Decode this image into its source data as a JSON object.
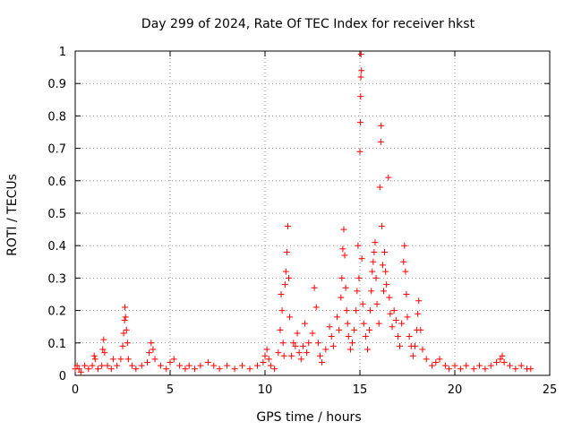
{
  "chart_data": {
    "type": "scatter",
    "title": "Day 299 of 2024, Rate Of TEC Index for receiver hkst",
    "xlabel": "GPS time / hours",
    "ylabel": "ROTI / TECUs",
    "xlim": [
      0,
      25
    ],
    "ylim": [
      0,
      1
    ],
    "x_ticks": [
      0,
      5,
      10,
      15,
      20,
      25
    ],
    "y_ticks": [
      0,
      0.1,
      0.2,
      0.3,
      0.4,
      0.5,
      0.6,
      0.7,
      0.8,
      0.9,
      1
    ],
    "x_tick_labels": [
      "0",
      "5",
      "10",
      "15",
      "20",
      "25"
    ],
    "y_tick_labels": [
      "0",
      "0.1",
      "0.2",
      "0.3",
      "0.4",
      "0.5",
      "0.6",
      "0.7",
      "0.8",
      "0.9",
      "1"
    ],
    "grid": true,
    "marker": "+",
    "series": [
      {
        "name": "ROTI",
        "color": "#ff0000",
        "points": [
          [
            0.0,
            0.02
          ],
          [
            0.1,
            0.03
          ],
          [
            0.2,
            0.02
          ],
          [
            0.3,
            0.01
          ],
          [
            0.5,
            0.03
          ],
          [
            0.7,
            0.02
          ],
          [
            0.9,
            0.03
          ],
          [
            1.0,
            0.06
          ],
          [
            1.05,
            0.05
          ],
          [
            1.2,
            0.02
          ],
          [
            1.4,
            0.03
          ],
          [
            1.45,
            0.08
          ],
          [
            1.5,
            0.11
          ],
          [
            1.55,
            0.07
          ],
          [
            1.7,
            0.03
          ],
          [
            1.9,
            0.02
          ],
          [
            2.0,
            0.05
          ],
          [
            2.2,
            0.03
          ],
          [
            2.4,
            0.05
          ],
          [
            2.5,
            0.09
          ],
          [
            2.55,
            0.13
          ],
          [
            2.6,
            0.17
          ],
          [
            2.62,
            0.21
          ],
          [
            2.65,
            0.18
          ],
          [
            2.7,
            0.14
          ],
          [
            2.75,
            0.1
          ],
          [
            2.8,
            0.05
          ],
          [
            3.0,
            0.03
          ],
          [
            3.2,
            0.02
          ],
          [
            3.5,
            0.03
          ],
          [
            3.8,
            0.04
          ],
          [
            3.9,
            0.07
          ],
          [
            4.0,
            0.1
          ],
          [
            4.1,
            0.08
          ],
          [
            4.2,
            0.05
          ],
          [
            4.5,
            0.03
          ],
          [
            4.8,
            0.02
          ],
          [
            5.0,
            0.04
          ],
          [
            5.2,
            0.05
          ],
          [
            5.5,
            0.03
          ],
          [
            5.8,
            0.02
          ],
          [
            6.0,
            0.03
          ],
          [
            6.3,
            0.02
          ],
          [
            6.6,
            0.03
          ],
          [
            7.0,
            0.04
          ],
          [
            7.3,
            0.03
          ],
          [
            7.6,
            0.02
          ],
          [
            8.0,
            0.03
          ],
          [
            8.4,
            0.02
          ],
          [
            8.8,
            0.03
          ],
          [
            9.2,
            0.02
          ],
          [
            9.6,
            0.03
          ],
          [
            9.9,
            0.04
          ],
          [
            10.0,
            0.06
          ],
          [
            10.1,
            0.08
          ],
          [
            10.2,
            0.05
          ],
          [
            10.3,
            0.03
          ],
          [
            10.5,
            0.02
          ],
          [
            10.7,
            0.07
          ],
          [
            10.8,
            0.14
          ],
          [
            10.85,
            0.25
          ],
          [
            10.9,
            0.2
          ],
          [
            10.95,
            0.1
          ],
          [
            11.0,
            0.06
          ],
          [
            11.05,
            0.28
          ],
          [
            11.1,
            0.32
          ],
          [
            11.15,
            0.38
          ],
          [
            11.2,
            0.46
          ],
          [
            11.25,
            0.3
          ],
          [
            11.3,
            0.18
          ],
          [
            11.4,
            0.06
          ],
          [
            11.5,
            0.1
          ],
          [
            11.6,
            0.09
          ],
          [
            11.7,
            0.13
          ],
          [
            11.8,
            0.07
          ],
          [
            11.9,
            0.05
          ],
          [
            12.0,
            0.09
          ],
          [
            12.1,
            0.16
          ],
          [
            12.2,
            0.07
          ],
          [
            12.3,
            0.1
          ],
          [
            12.5,
            0.13
          ],
          [
            12.6,
            0.27
          ],
          [
            12.7,
            0.21
          ],
          [
            12.8,
            0.1
          ],
          [
            12.9,
            0.06
          ],
          [
            13.0,
            0.04
          ],
          [
            13.2,
            0.08
          ],
          [
            13.4,
            0.15
          ],
          [
            13.5,
            0.12
          ],
          [
            13.6,
            0.09
          ],
          [
            13.8,
            0.18
          ],
          [
            13.9,
            0.14
          ],
          [
            14.0,
            0.24
          ],
          [
            14.05,
            0.3
          ],
          [
            14.1,
            0.39
          ],
          [
            14.15,
            0.45
          ],
          [
            14.2,
            0.37
          ],
          [
            14.25,
            0.27
          ],
          [
            14.3,
            0.2
          ],
          [
            14.35,
            0.16
          ],
          [
            14.4,
            0.12
          ],
          [
            14.5,
            0.08
          ],
          [
            14.6,
            0.1
          ],
          [
            14.7,
            0.14
          ],
          [
            14.8,
            0.2
          ],
          [
            14.85,
            0.26
          ],
          [
            14.9,
            0.4
          ],
          [
            14.95,
            0.3
          ],
          [
            15.0,
            0.69
          ],
          [
            15.02,
            0.78
          ],
          [
            15.04,
            0.86
          ],
          [
            15.05,
            0.92
          ],
          [
            15.06,
            0.99
          ],
          [
            15.08,
            0.94
          ],
          [
            15.1,
            0.36
          ],
          [
            15.15,
            0.22
          ],
          [
            15.2,
            0.16
          ],
          [
            15.3,
            0.12
          ],
          [
            15.4,
            0.08
          ],
          [
            15.5,
            0.14
          ],
          [
            15.55,
            0.2
          ],
          [
            15.6,
            0.26
          ],
          [
            15.65,
            0.32
          ],
          [
            15.7,
            0.35
          ],
          [
            15.75,
            0.38
          ],
          [
            15.8,
            0.41
          ],
          [
            15.85,
            0.3
          ],
          [
            15.9,
            0.22
          ],
          [
            16.0,
            0.16
          ],
          [
            16.05,
            0.58
          ],
          [
            16.1,
            0.72
          ],
          [
            16.12,
            0.77
          ],
          [
            16.15,
            0.46
          ],
          [
            16.2,
            0.34
          ],
          [
            16.25,
            0.26
          ],
          [
            16.3,
            0.38
          ],
          [
            16.35,
            0.32
          ],
          [
            16.4,
            0.28
          ],
          [
            16.5,
            0.61
          ],
          [
            16.55,
            0.24
          ],
          [
            16.6,
            0.19
          ],
          [
            16.7,
            0.15
          ],
          [
            16.8,
            0.2
          ],
          [
            16.9,
            0.17
          ],
          [
            17.0,
            0.12
          ],
          [
            17.1,
            0.09
          ],
          [
            17.2,
            0.16
          ],
          [
            17.3,
            0.35
          ],
          [
            17.35,
            0.4
          ],
          [
            17.4,
            0.32
          ],
          [
            17.45,
            0.25
          ],
          [
            17.5,
            0.18
          ],
          [
            17.6,
            0.12
          ],
          [
            17.7,
            0.09
          ],
          [
            17.8,
            0.06
          ],
          [
            17.9,
            0.09
          ],
          [
            18.0,
            0.14
          ],
          [
            18.05,
            0.19
          ],
          [
            18.1,
            0.23
          ],
          [
            18.2,
            0.14
          ],
          [
            18.3,
            0.08
          ],
          [
            18.5,
            0.05
          ],
          [
            18.8,
            0.03
          ],
          [
            19.0,
            0.04
          ],
          [
            19.2,
            0.05
          ],
          [
            19.5,
            0.03
          ],
          [
            19.7,
            0.02
          ],
          [
            20.0,
            0.03
          ],
          [
            20.3,
            0.02
          ],
          [
            20.6,
            0.03
          ],
          [
            21.0,
            0.02
          ],
          [
            21.3,
            0.03
          ],
          [
            21.6,
            0.02
          ],
          [
            21.9,
            0.03
          ],
          [
            22.2,
            0.04
          ],
          [
            22.4,
            0.05
          ],
          [
            22.5,
            0.06
          ],
          [
            22.6,
            0.04
          ],
          [
            22.9,
            0.03
          ],
          [
            23.2,
            0.02
          ],
          [
            23.5,
            0.03
          ],
          [
            23.8,
            0.02
          ],
          [
            24.0,
            0.02
          ]
        ]
      }
    ]
  }
}
